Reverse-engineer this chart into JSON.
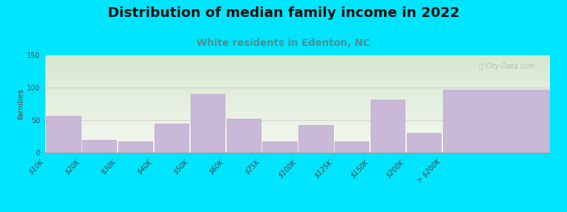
{
  "title": "Distribution of median family income in 2022",
  "subtitle": "White residents in Edenton, NC",
  "ylabel": "families",
  "categories": [
    "$10K",
    "$20K",
    "$30K",
    "$40K",
    "$50K",
    "$60K",
    "$75K",
    "$100K",
    "$125K",
    "$150K",
    "$200K",
    "> $200K"
  ],
  "values": [
    57,
    20,
    17,
    45,
    90,
    52,
    17,
    42,
    17,
    81,
    30,
    97
  ],
  "bar_color": "#c9b8d8",
  "bar_edge_color": "#b8a8cc",
  "background_outer": "#00e5ff",
  "plot_bg_top_color": "#d6e8d0",
  "plot_bg_bottom_color": "#f5f8f0",
  "title_fontsize": 14,
  "subtitle_fontsize": 10,
  "subtitle_color": "#4a9090",
  "ylabel_fontsize": 8,
  "tick_fontsize": 7,
  "ylim": [
    0,
    150
  ],
  "yticks": [
    0,
    50,
    100,
    150
  ],
  "watermark_text": "City-Data.com",
  "watermark_color": "#b0b0b0",
  "bar_widths": [
    1,
    1,
    1,
    1,
    1,
    1,
    1,
    1,
    1,
    1,
    1,
    3
  ],
  "bar_left_edges": [
    0,
    1,
    2,
    3,
    4,
    5,
    6,
    7,
    8,
    9,
    10,
    11
  ]
}
